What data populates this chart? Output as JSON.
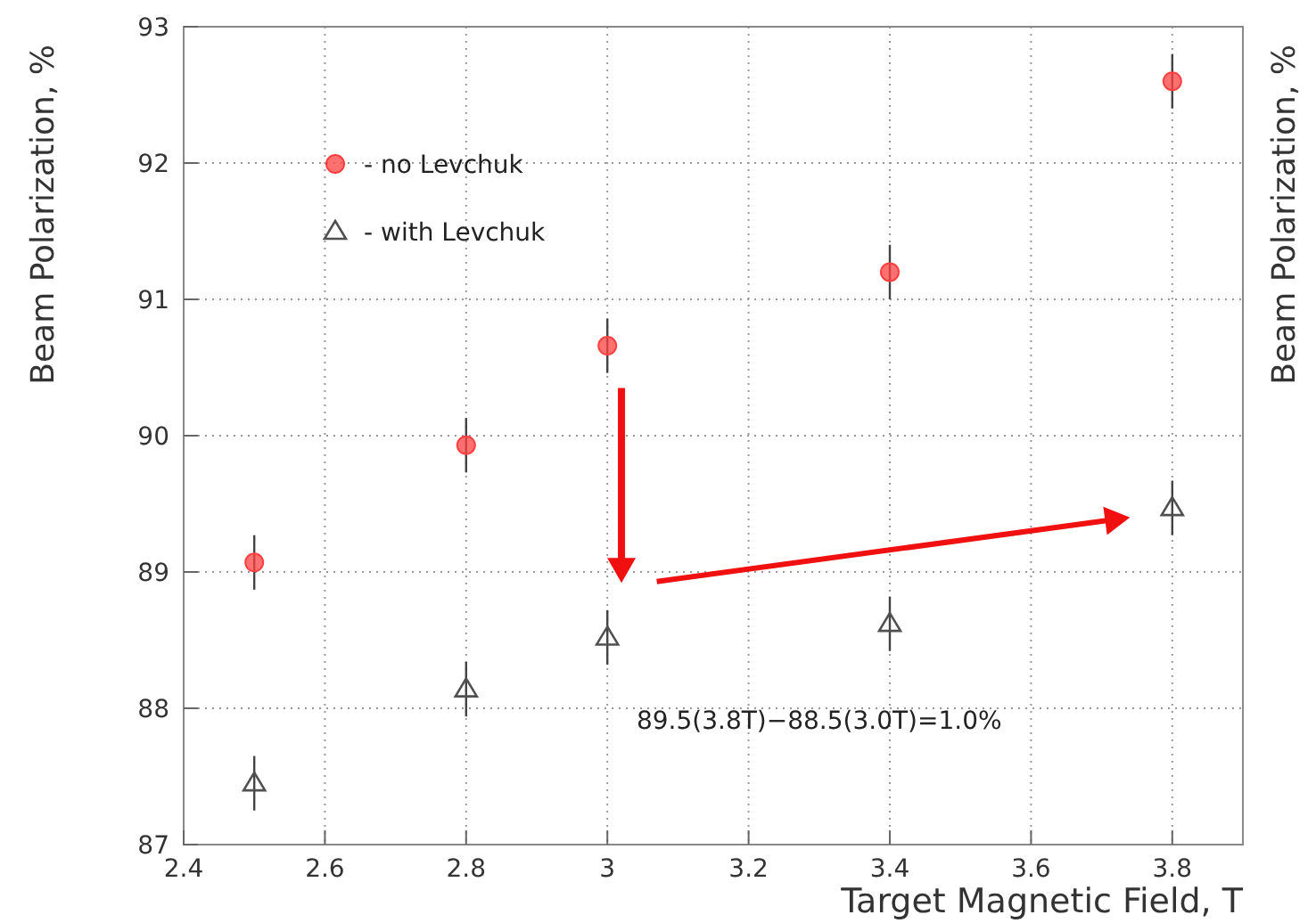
{
  "chart_data": {
    "type": "scatter",
    "xlabel": "Target Magnetic Field, T",
    "ylabel": "Beam Polarization, %",
    "y2label": "Beam Polarization, %",
    "xlim": [
      2.4,
      3.9
    ],
    "xticks": [
      2.4,
      2.6,
      2.8,
      3,
      3.2,
      3.4,
      3.6,
      3.8
    ],
    "ylim": [
      87,
      93
    ],
    "yticks": [
      87,
      88,
      89,
      90,
      91,
      92,
      93
    ],
    "grid": true,
    "legend": "top left",
    "line_style": "dotted",
    "x": [
      2.5,
      2.8,
      3.0,
      3.4,
      3.8
    ],
    "series": [
      {
        "name": "- no Levchuk",
        "color": "#ff4040",
        "marker": "circle",
        "values": [
          89.07,
          89.93,
          90.66,
          91.2,
          92.6
        ],
        "errors": [
          0.2,
          0.2,
          0.2,
          0.2,
          0.2
        ]
      },
      {
        "name": "- with Levchuk",
        "color": "#505050",
        "marker": "triangle",
        "values": [
          87.45,
          88.14,
          88.52,
          88.62,
          89.47
        ],
        "errors": [
          0.2,
          0.2,
          0.2,
          0.2,
          0.2
        ]
      }
    ],
    "annotations": [
      "89.5(3.8T)−88.5(3.0T)=1.0%"
    ]
  }
}
